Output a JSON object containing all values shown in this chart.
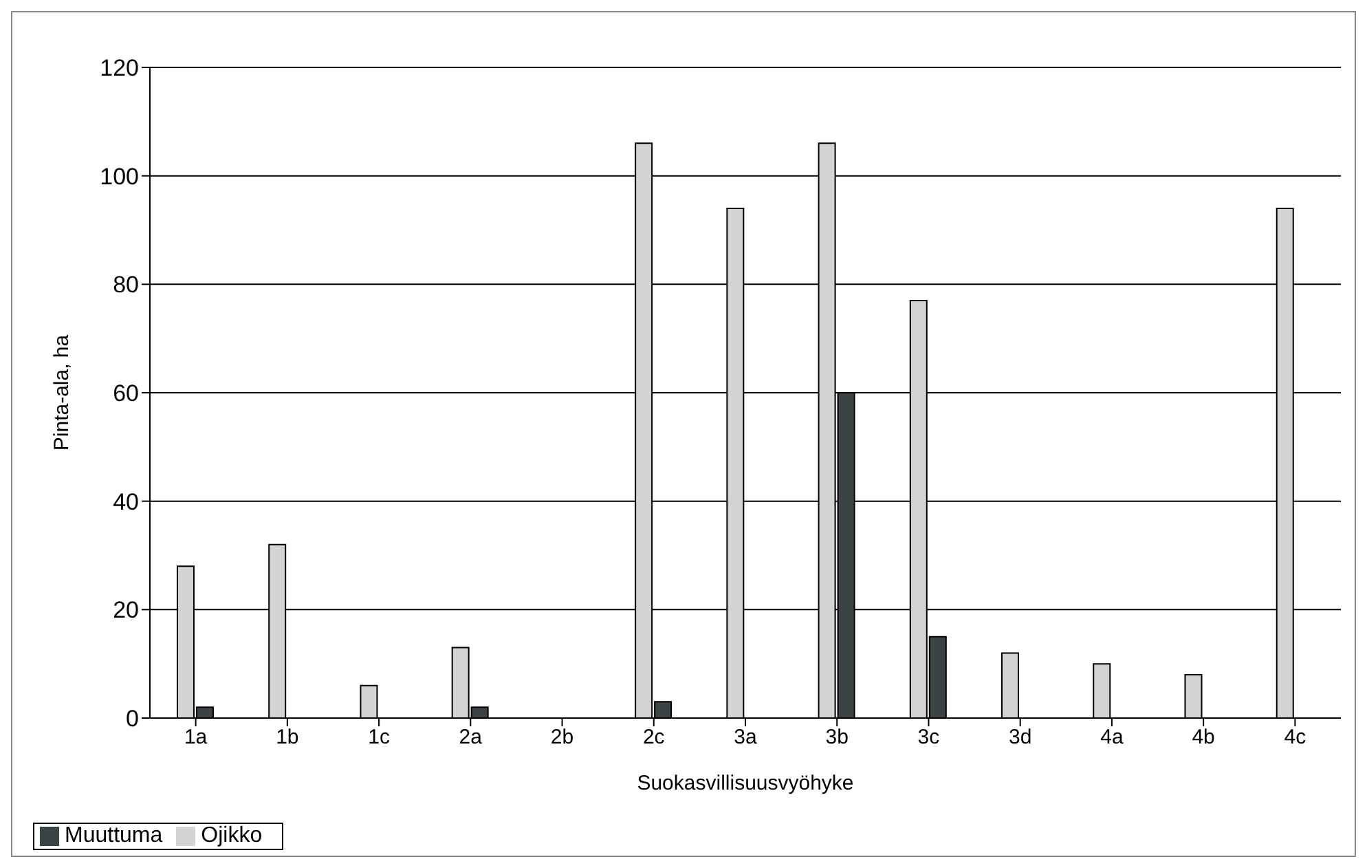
{
  "chart_data": {
    "type": "bar",
    "xlabel": "Suokasvillisuusvyöhyke",
    "ylabel": "Pinta-ala, ha",
    "categories": [
      "1a",
      "1b",
      "1c",
      "2a",
      "2b",
      "2c",
      "3a",
      "3b",
      "3c",
      "3d",
      "4a",
      "4b",
      "4c"
    ],
    "series": [
      {
        "name": "Ojikko",
        "color": "#d3d3d3",
        "values": [
          28,
          32,
          6,
          13,
          0,
          106,
          94,
          106,
          77,
          12,
          10,
          8,
          94
        ]
      },
      {
        "name": "Muuttuma",
        "color": "#3b4444",
        "values": [
          2,
          0,
          0,
          2,
          0,
          3,
          0,
          60,
          15,
          0,
          0,
          0,
          0
        ]
      }
    ],
    "ylim": [
      0,
      120
    ],
    "yticks": [
      0,
      20,
      40,
      60,
      80,
      100,
      120
    ],
    "grid": "y",
    "legend": "bottom left"
  }
}
